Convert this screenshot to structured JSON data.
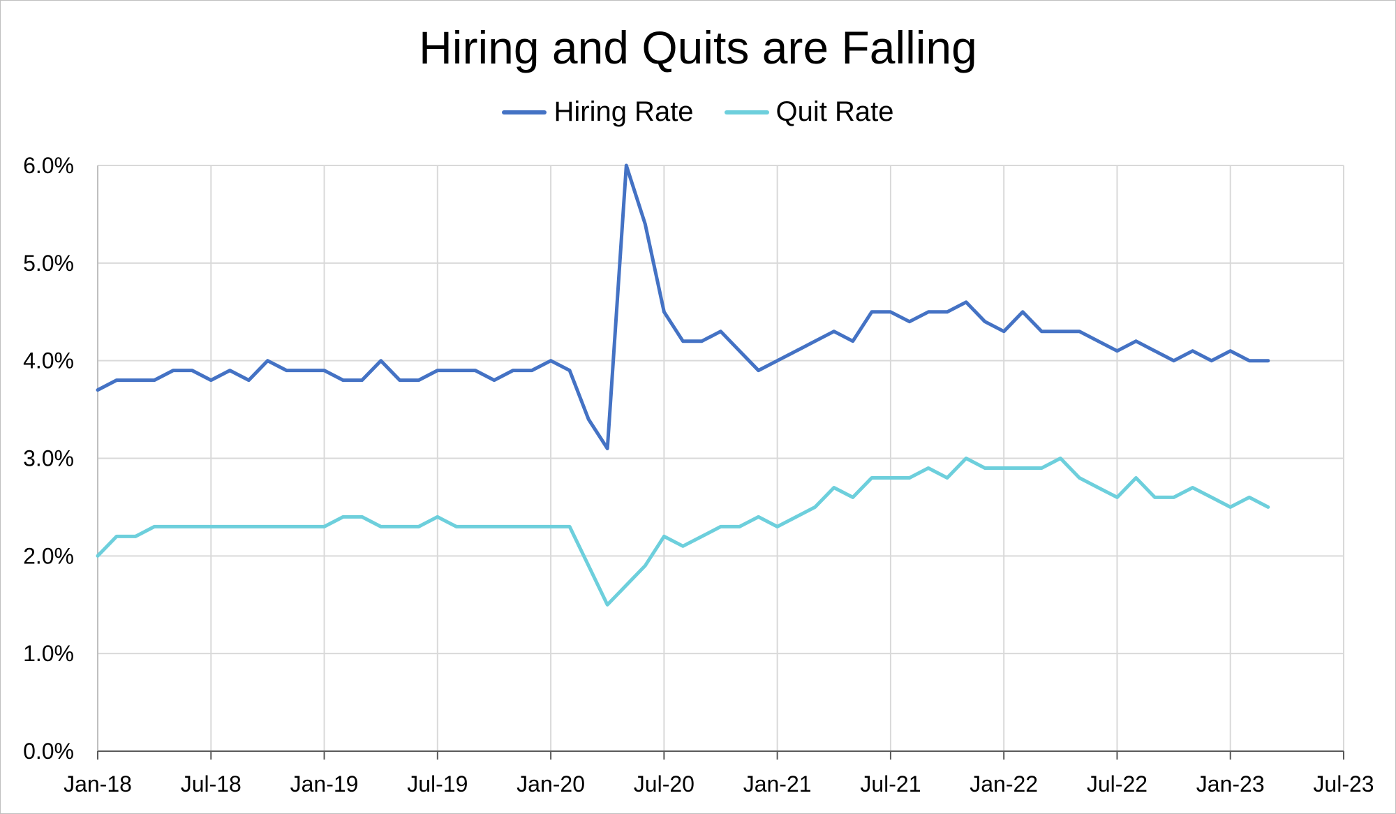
{
  "chart_data": {
    "type": "line",
    "title": "Hiring and Quits are Falling",
    "xlabel": "",
    "ylabel": "",
    "x_start": "2018-01",
    "x_end": "2023-07",
    "x_ticks": [
      "Jan-18",
      "Jul-18",
      "Jan-19",
      "Jul-19",
      "Jan-20",
      "Jul-20",
      "Jan-21",
      "Jul-21",
      "Jan-22",
      "Jul-22",
      "Jan-23",
      "Jul-23"
    ],
    "y_ticks": [
      "0.0%",
      "1.0%",
      "2.0%",
      "3.0%",
      "4.0%",
      "5.0%",
      "6.0%"
    ],
    "ylim": [
      0,
      6
    ],
    "grid": true,
    "legend_position": "top",
    "x": [
      "2018-01",
      "2018-02",
      "2018-03",
      "2018-04",
      "2018-05",
      "2018-06",
      "2018-07",
      "2018-08",
      "2018-09",
      "2018-10",
      "2018-11",
      "2018-12",
      "2019-01",
      "2019-02",
      "2019-03",
      "2019-04",
      "2019-05",
      "2019-06",
      "2019-07",
      "2019-08",
      "2019-09",
      "2019-10",
      "2019-11",
      "2019-12",
      "2020-01",
      "2020-02",
      "2020-03",
      "2020-04",
      "2020-05",
      "2020-06",
      "2020-07",
      "2020-08",
      "2020-09",
      "2020-10",
      "2020-11",
      "2020-12",
      "2021-01",
      "2021-02",
      "2021-03",
      "2021-04",
      "2021-05",
      "2021-06",
      "2021-07",
      "2021-08",
      "2021-09",
      "2021-10",
      "2021-11",
      "2021-12",
      "2022-01",
      "2022-02",
      "2022-03",
      "2022-04",
      "2022-05",
      "2022-06",
      "2022-07",
      "2022-08",
      "2022-09",
      "2022-10",
      "2022-11",
      "2022-12",
      "2023-01",
      "2023-02",
      "2023-03"
    ],
    "series": [
      {
        "name": "Hiring Rate",
        "color": "#4472c4",
        "values": [
          3.7,
          3.8,
          3.8,
          3.8,
          3.9,
          3.9,
          3.8,
          3.9,
          3.8,
          4.0,
          3.9,
          3.9,
          3.9,
          3.8,
          3.8,
          4.0,
          3.8,
          3.8,
          3.9,
          3.9,
          3.9,
          3.8,
          3.9,
          3.9,
          4.0,
          3.9,
          3.4,
          3.1,
          6.0,
          5.4,
          4.5,
          4.2,
          4.2,
          4.3,
          4.1,
          3.9,
          4.0,
          4.1,
          4.2,
          4.3,
          4.2,
          4.5,
          4.5,
          4.4,
          4.5,
          4.5,
          4.6,
          4.4,
          4.3,
          4.5,
          4.3,
          4.3,
          4.3,
          4.2,
          4.1,
          4.2,
          4.1,
          4.0,
          4.1,
          4.0,
          4.1,
          4.0,
          4.0
        ]
      },
      {
        "name": "Quit Rate",
        "color": "#6dcfdc",
        "values": [
          2.0,
          2.2,
          2.2,
          2.3,
          2.3,
          2.3,
          2.3,
          2.3,
          2.3,
          2.3,
          2.3,
          2.3,
          2.3,
          2.4,
          2.4,
          2.3,
          2.3,
          2.3,
          2.4,
          2.3,
          2.3,
          2.3,
          2.3,
          2.3,
          2.3,
          2.3,
          1.9,
          1.5,
          1.7,
          1.9,
          2.2,
          2.1,
          2.2,
          2.3,
          2.3,
          2.4,
          2.3,
          2.4,
          2.5,
          2.7,
          2.6,
          2.8,
          2.8,
          2.8,
          2.9,
          2.8,
          3.0,
          2.9,
          2.9,
          2.9,
          2.9,
          3.0,
          2.8,
          2.7,
          2.6,
          2.8,
          2.6,
          2.6,
          2.7,
          2.6,
          2.5,
          2.6,
          2.5
        ]
      }
    ]
  }
}
